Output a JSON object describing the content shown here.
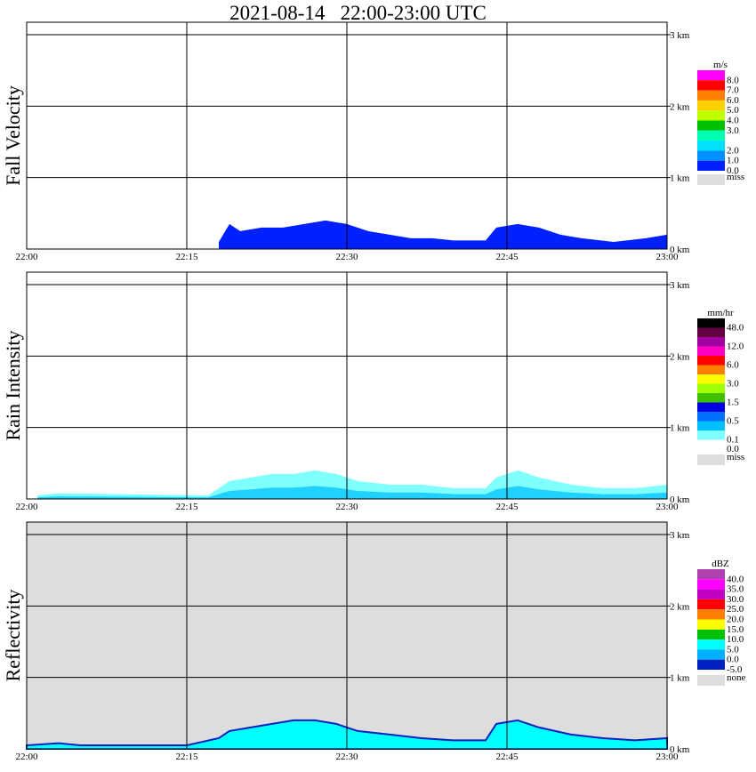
{
  "title": "2021-08-14   22:00-23:00 UTC",
  "chart_data": [
    {
      "type": "heatmap",
      "ylabel": "Fall Velocity",
      "x_ticks": [
        "22:00",
        "22:15",
        "22:30",
        "22:45",
        "23:00"
      ],
      "y_ticks": [
        "1 km",
        "2 km",
        "3 km"
      ],
      "y_zero_label": "0 km",
      "xlim": [
        "22:00",
        "23:00"
      ],
      "ylim_km": [
        0,
        3.0
      ],
      "unit": "m/s",
      "background": "#ffffff",
      "colorbar": [
        {
          "color": "#ff00ff",
          "label": "8.0"
        },
        {
          "color": "#ff0000",
          "label": "7.0"
        },
        {
          "color": "#ff8000",
          "label": "6.0"
        },
        {
          "color": "#ffd000",
          "label": "5.0"
        },
        {
          "color": "#c0ff00",
          "label": "4.0"
        },
        {
          "color": "#00c000",
          "label": "3.0"
        },
        {
          "color": "#00ffb0",
          "label": ""
        },
        {
          "color": "#00e0ff",
          "label": "2.0"
        },
        {
          "color": "#0090ff",
          "label": "1.0"
        },
        {
          "color": "#0020ff",
          "label": "0.0"
        }
      ],
      "miss_label": "miss",
      "miss_color": "#dddddd",
      "echo_top_km": [
        [
          "22:18",
          0.1
        ],
        [
          "22:19",
          0.35
        ],
        [
          "22:20",
          0.25
        ],
        [
          "22:22",
          0.3
        ],
        [
          "22:24",
          0.3
        ],
        [
          "22:26",
          0.35
        ],
        [
          "22:28",
          0.4
        ],
        [
          "22:30",
          0.35
        ],
        [
          "22:32",
          0.25
        ],
        [
          "22:34",
          0.2
        ],
        [
          "22:36",
          0.15
        ],
        [
          "22:38",
          0.15
        ],
        [
          "22:40",
          0.12
        ],
        [
          "22:43",
          0.12
        ],
        [
          "22:44",
          0.3
        ],
        [
          "22:46",
          0.35
        ],
        [
          "22:48",
          0.3
        ],
        [
          "22:50",
          0.2
        ],
        [
          "22:52",
          0.15
        ],
        [
          "22:55",
          0.1
        ],
        [
          "22:58",
          0.15
        ],
        [
          "23:00",
          0.2
        ]
      ]
    },
    {
      "type": "heatmap",
      "ylabel": "Rain Intensity",
      "x_ticks": [
        "22:00",
        "22:15",
        "22:30",
        "22:45",
        "23:00"
      ],
      "y_ticks": [
        "1 km",
        "2 km",
        "3 km"
      ],
      "y_zero_label": "0 km",
      "xlim": [
        "22:00",
        "23:00"
      ],
      "ylim_km": [
        0,
        3.0
      ],
      "unit": "mm/hr",
      "background": "#ffffff",
      "colorbar": [
        {
          "color": "#000000",
          "label": "48.0"
        },
        {
          "color": "#600040",
          "label": ""
        },
        {
          "color": "#a000a0",
          "label": "12.0"
        },
        {
          "color": "#ff00c0",
          "label": ""
        },
        {
          "color": "#ff0000",
          "label": "6.0"
        },
        {
          "color": "#ff8000",
          "label": ""
        },
        {
          "color": "#ffff00",
          "label": "3.0"
        },
        {
          "color": "#a0ff00",
          "label": ""
        },
        {
          "color": "#40c000",
          "label": "1.5"
        },
        {
          "color": "#0000e0",
          "label": ""
        },
        {
          "color": "#0070ff",
          "label": "0.5"
        },
        {
          "color": "#00c0ff",
          "label": ""
        },
        {
          "color": "#80ffff",
          "label": "0.1"
        },
        {
          "color": "#ffffff",
          "label": "0.0"
        }
      ],
      "miss_label": "miss",
      "miss_color": "#dddddd",
      "echo_top_km": [
        [
          "22:01",
          0.05
        ],
        [
          "22:03",
          0.08
        ],
        [
          "22:17",
          0.05
        ],
        [
          "22:19",
          0.25
        ],
        [
          "22:21",
          0.3
        ],
        [
          "22:23",
          0.35
        ],
        [
          "22:25",
          0.35
        ],
        [
          "22:27",
          0.4
        ],
        [
          "22:29",
          0.35
        ],
        [
          "22:31",
          0.25
        ],
        [
          "22:34",
          0.2
        ],
        [
          "22:37",
          0.2
        ],
        [
          "22:40",
          0.15
        ],
        [
          "22:43",
          0.15
        ],
        [
          "22:44",
          0.3
        ],
        [
          "22:46",
          0.4
        ],
        [
          "22:48",
          0.3
        ],
        [
          "22:51",
          0.2
        ],
        [
          "22:54",
          0.15
        ],
        [
          "22:57",
          0.15
        ],
        [
          "23:00",
          0.2
        ]
      ]
    },
    {
      "type": "heatmap",
      "ylabel": "Reflectivity",
      "x_ticks": [
        "22:00",
        "22:15",
        "22:30",
        "22:45",
        "23:00"
      ],
      "y_ticks": [
        "1 km",
        "2 km",
        "3 km"
      ],
      "y_zero_label": "0 km",
      "xlim": [
        "22:00",
        "23:00"
      ],
      "ylim_km": [
        0,
        3.0
      ],
      "unit": "dBZ",
      "background": "#dddddd",
      "colorbar": [
        {
          "color": "#b040b0",
          "label": "40.0"
        },
        {
          "color": "#ff00ff",
          "label": "35.0"
        },
        {
          "color": "#c000c0",
          "label": "30.0"
        },
        {
          "color": "#ff0000",
          "label": "25.0"
        },
        {
          "color": "#ff8000",
          "label": "20.0"
        },
        {
          "color": "#ffff00",
          "label": "15.0"
        },
        {
          "color": "#00c000",
          "label": "10.0"
        },
        {
          "color": "#00ffff",
          "label": "5.0"
        },
        {
          "color": "#00b0ff",
          "label": "0.0"
        },
        {
          "color": "#0020c0",
          "label": "-5.0"
        }
      ],
      "miss_label": "none",
      "miss_color": "#dddddd",
      "echo_top_km": [
        [
          "22:00",
          0.05
        ],
        [
          "22:03",
          0.08
        ],
        [
          "22:05",
          0.05
        ],
        [
          "22:15",
          0.05
        ],
        [
          "22:18",
          0.15
        ],
        [
          "22:19",
          0.25
        ],
        [
          "22:21",
          0.3
        ],
        [
          "22:23",
          0.35
        ],
        [
          "22:25",
          0.4
        ],
        [
          "22:27",
          0.4
        ],
        [
          "22:29",
          0.35
        ],
        [
          "22:31",
          0.25
        ],
        [
          "22:34",
          0.2
        ],
        [
          "22:37",
          0.15
        ],
        [
          "22:40",
          0.12
        ],
        [
          "22:43",
          0.12
        ],
        [
          "22:44",
          0.35
        ],
        [
          "22:46",
          0.4
        ],
        [
          "22:48",
          0.3
        ],
        [
          "22:51",
          0.2
        ],
        [
          "22:54",
          0.15
        ],
        [
          "22:57",
          0.12
        ],
        [
          "23:00",
          0.15
        ]
      ]
    }
  ]
}
